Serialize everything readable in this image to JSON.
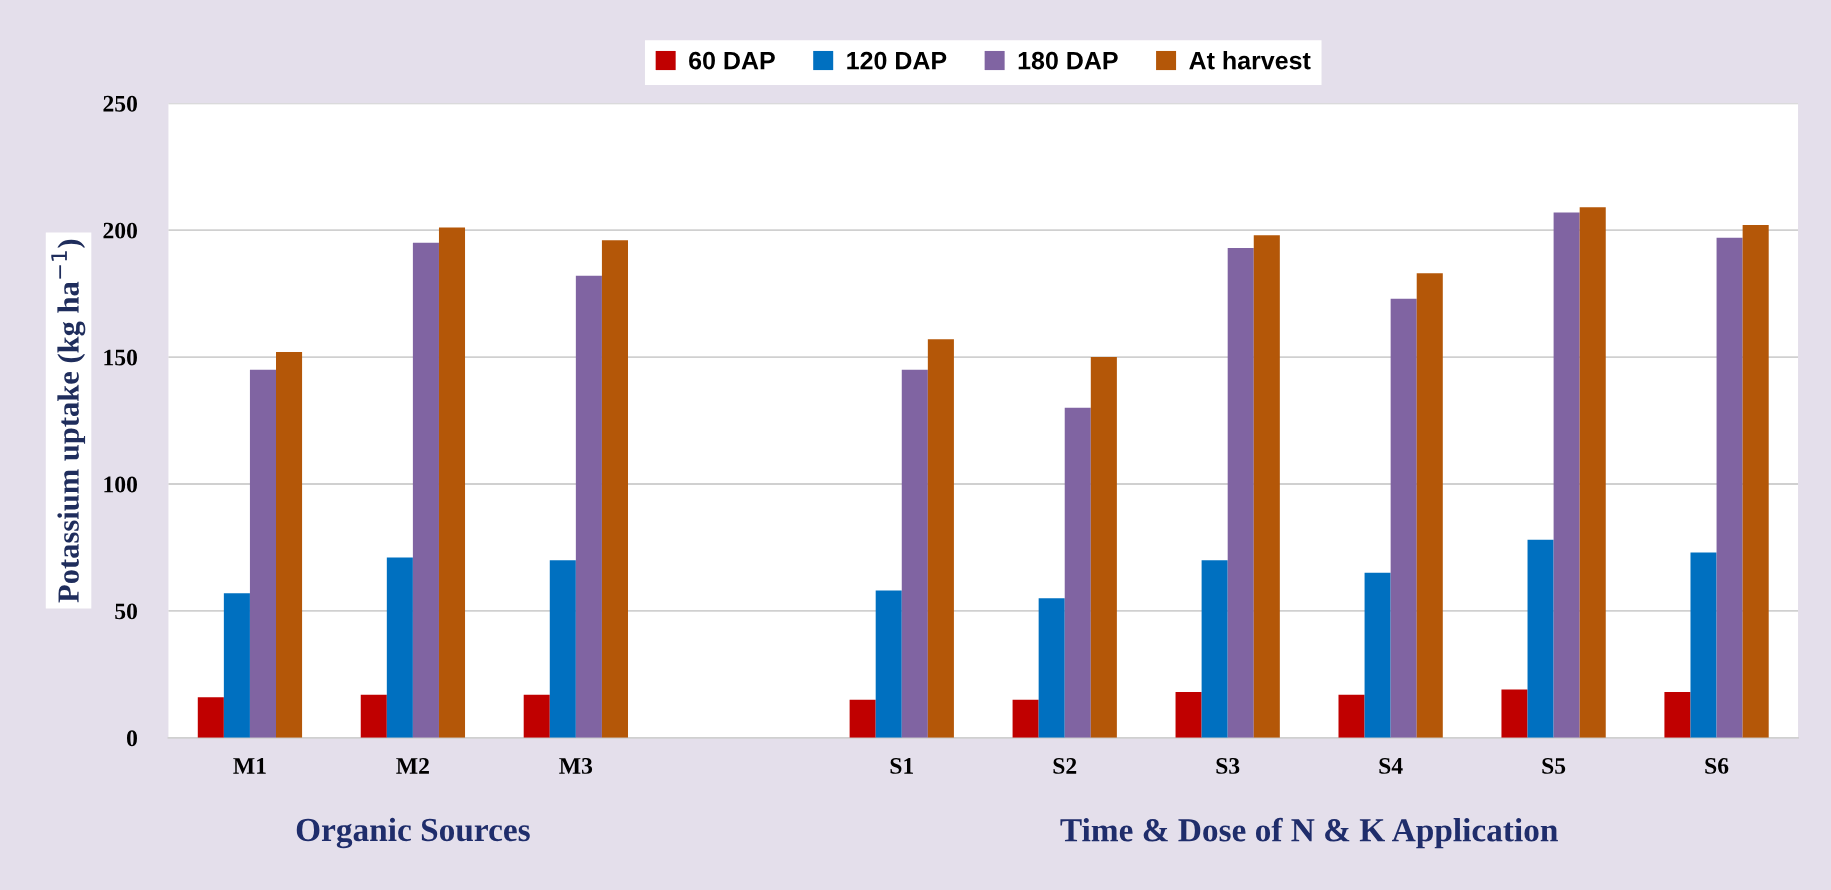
{
  "chart_data": {
    "type": "bar",
    "ylabel": "Potassium uptake (kg ha$^{−1}$)",
    "categories": [
      "M1",
      "M2",
      "M3",
      null,
      "S1",
      "S2",
      "S3",
      "S4",
      "S5",
      "S6"
    ],
    "series": [
      {
        "name": "60 DAP",
        "color": "#c00000",
        "values": [
          16,
          17,
          17,
          null,
          15,
          15,
          18,
          17,
          19,
          18
        ]
      },
      {
        "name": "120 DAP",
        "color": "#0070c0",
        "values": [
          57,
          71,
          70,
          null,
          58,
          55,
          70,
          65,
          78,
          73
        ]
      },
      {
        "name": "180 DAP",
        "color": "#8064a2",
        "values": [
          145,
          195,
          182,
          null,
          145,
          130,
          193,
          173,
          207,
          197
        ]
      },
      {
        "name": "At harvest",
        "color": "#b45708",
        "values": [
          152,
          201,
          196,
          null,
          157,
          150,
          198,
          183,
          209,
          202
        ]
      }
    ],
    "ylim": [
      0,
      250
    ],
    "yticks": [
      0,
      50,
      100,
      150,
      200,
      250
    ],
    "grid": "y",
    "legend": "top",
    "annotations": [
      "Organic Sources",
      "Time & Dose of N & K Application"
    ]
  }
}
